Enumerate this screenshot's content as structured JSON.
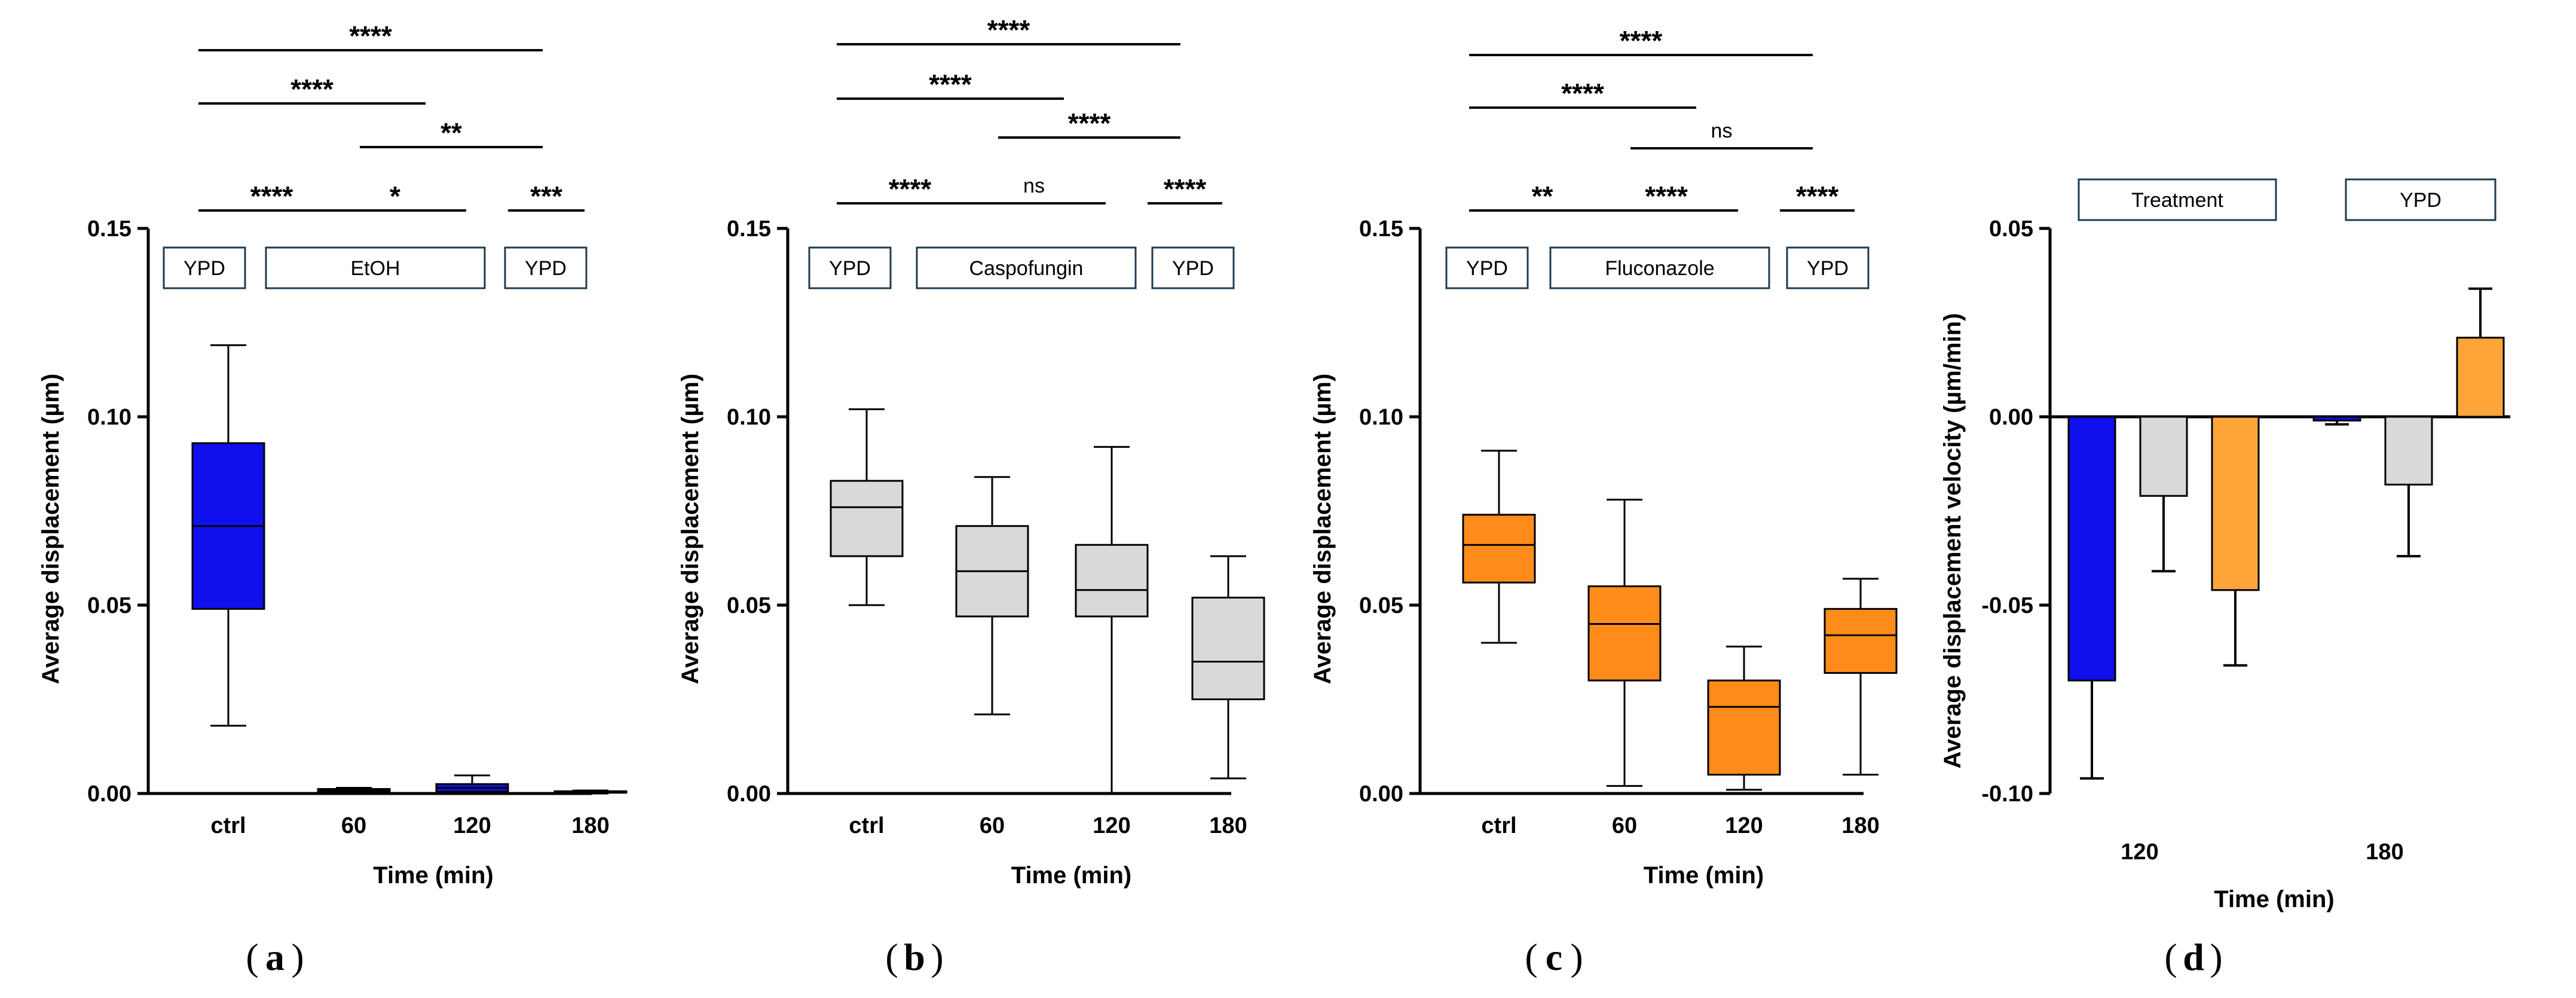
{
  "chart_data": [
    {
      "id": "a",
      "type": "box",
      "panel_label": "(a)",
      "letter": "a",
      "ylabel": "Average displacement (µm)",
      "xlabel": "Time (min)",
      "ylim": [
        0,
        0.15
      ],
      "yticks": [
        0.0,
        0.05,
        0.1,
        0.15
      ],
      "ytick_labels": [
        "0.00",
        "0.05",
        "0.10",
        "0.15"
      ],
      "categories": [
        "ctrl",
        "60",
        "120",
        "180"
      ],
      "color": "#1010ee",
      "boxes": [
        {
          "min": 0.018,
          "q1": 0.049,
          "median": 0.071,
          "q3": 0.093,
          "max": 0.119
        },
        {
          "min": 0.0,
          "q1": 0.0005,
          "median": 0.0008,
          "q3": 0.0012,
          "max": 0.0015
        },
        {
          "min": 0.0,
          "q1": 0.0005,
          "median": 0.0015,
          "q3": 0.0025,
          "max": 0.0048
        },
        {
          "min": 0.0,
          "q1": 0.0002,
          "median": 0.0004,
          "q3": 0.0006,
          "max": 0.0008
        }
      ],
      "condition_boxes": [
        {
          "label": "YPD",
          "from": 0,
          "to": 0
        },
        {
          "label": "EtOH",
          "from": 1,
          "to": 2
        },
        {
          "label": "YPD",
          "from": 3,
          "to": 3
        }
      ],
      "significance": [
        {
          "from": 0,
          "to": 1,
          "label": "****",
          "level": 0
        },
        {
          "from": 1,
          "to": 2,
          "label": "*",
          "level": 0
        },
        {
          "from": 2,
          "to": 3,
          "label": "***",
          "level": 0
        },
        {
          "from": 1,
          "to": 3,
          "label": "**",
          "level": 1
        },
        {
          "from": 0,
          "to": 2,
          "label": "****",
          "level": 2
        },
        {
          "from": 0,
          "to": 3,
          "label": "****",
          "level": 3
        }
      ]
    },
    {
      "id": "b",
      "type": "box",
      "panel_label": "(b)",
      "letter": "b",
      "ylabel": "Average displacement (µm)",
      "xlabel": "Time (min)",
      "ylim": [
        0,
        0.15
      ],
      "yticks": [
        0.0,
        0.05,
        0.1,
        0.15
      ],
      "ytick_labels": [
        "0.00",
        "0.05",
        "0.10",
        "0.15"
      ],
      "categories": [
        "ctrl",
        "60",
        "120",
        "180"
      ],
      "color": "#d9d9d9",
      "boxes": [
        {
          "min": 0.05,
          "q1": 0.063,
          "median": 0.076,
          "q3": 0.083,
          "max": 0.102
        },
        {
          "min": 0.021,
          "q1": 0.047,
          "median": 0.059,
          "q3": 0.071,
          "max": 0.084
        },
        {
          "min": 0.0,
          "q1": 0.047,
          "median": 0.054,
          "q3": 0.066,
          "max": 0.092
        },
        {
          "min": 0.004,
          "q1": 0.025,
          "median": 0.035,
          "q3": 0.052,
          "max": 0.063
        }
      ],
      "condition_boxes": [
        {
          "label": "YPD",
          "from": 0,
          "to": 0
        },
        {
          "label": "Caspofungin",
          "from": 1,
          "to": 2
        },
        {
          "label": "YPD",
          "from": 3,
          "to": 3
        }
      ],
      "significance": [
        {
          "from": 0,
          "to": 1,
          "label": "****",
          "level": 0
        },
        {
          "from": 1,
          "to": 2,
          "label": "ns",
          "level": 0
        },
        {
          "from": 2,
          "to": 3,
          "label": "****",
          "level": 0
        },
        {
          "from": 1,
          "to": 3,
          "label": "****",
          "level": 1
        },
        {
          "from": 0,
          "to": 2,
          "label": "****",
          "level": 2
        },
        {
          "from": 0,
          "to": 3,
          "label": "****",
          "level": 3
        }
      ]
    },
    {
      "id": "c",
      "type": "box",
      "panel_label": "(c)",
      "letter": "c",
      "ylabel": "Average displacement (µm)",
      "xlabel": "Time (min)",
      "ylim": [
        0,
        0.15
      ],
      "yticks": [
        0.0,
        0.05,
        0.1,
        0.15
      ],
      "ytick_labels": [
        "0.00",
        "0.05",
        "0.10",
        "0.15"
      ],
      "categories": [
        "ctrl",
        "60",
        "120",
        "180"
      ],
      "color": "#ff8c1a",
      "boxes": [
        {
          "min": 0.04,
          "q1": 0.056,
          "median": 0.066,
          "q3": 0.074,
          "max": 0.091
        },
        {
          "min": 0.002,
          "q1": 0.03,
          "median": 0.045,
          "q3": 0.055,
          "max": 0.078
        },
        {
          "min": 0.001,
          "q1": 0.005,
          "median": 0.023,
          "q3": 0.03,
          "max": 0.039
        },
        {
          "min": 0.005,
          "q1": 0.032,
          "median": 0.042,
          "q3": 0.049,
          "max": 0.057
        }
      ],
      "condition_boxes": [
        {
          "label": "YPD",
          "from": 0,
          "to": 0
        },
        {
          "label": "Fluconazole",
          "from": 1,
          "to": 2
        },
        {
          "label": "YPD",
          "from": 3,
          "to": 3
        }
      ],
      "significance": [
        {
          "from": 0,
          "to": 1,
          "label": "**",
          "level": 0
        },
        {
          "from": 1,
          "to": 2,
          "label": "****",
          "level": 0
        },
        {
          "from": 2,
          "to": 3,
          "label": "****",
          "level": 0
        },
        {
          "from": 1,
          "to": 3,
          "label": "ns",
          "level": 1
        },
        {
          "from": 0,
          "to": 2,
          "label": "****",
          "level": 2
        },
        {
          "from": 0,
          "to": 3,
          "label": "****",
          "level": 3
        }
      ]
    },
    {
      "id": "d",
      "type": "bar",
      "panel_label": "(d)",
      "letter": "d",
      "ylabel": "Average displacement velocity (µm/min)",
      "xlabel": "Time (min)",
      "ylim": [
        -0.1,
        0.05
      ],
      "yticks": [
        -0.1,
        -0.05,
        0.0,
        0.05
      ],
      "ytick_labels": [
        "-0.10",
        "-0.05",
        "0.00",
        "0.05"
      ],
      "categories": [
        "120",
        "180"
      ],
      "series": [
        {
          "name": "EtOH",
          "color": "#1010ee",
          "values": [
            -0.07,
            -0.001
          ],
          "errors": [
            0.026,
            0.001
          ]
        },
        {
          "name": "Caspofungin",
          "color": "#d9d9d9",
          "values": [
            -0.021,
            -0.018
          ],
          "errors": [
            0.02,
            0.019
          ]
        },
        {
          "name": "Fluconazole",
          "color": "#ffa53a",
          "values": [
            -0.046,
            0.021
          ],
          "errors": [
            0.02,
            0.013
          ]
        }
      ],
      "condition_boxes": [
        {
          "label": "Treatment",
          "group": 0
        },
        {
          "label": "YPD",
          "group": 1
        }
      ]
    }
  ]
}
